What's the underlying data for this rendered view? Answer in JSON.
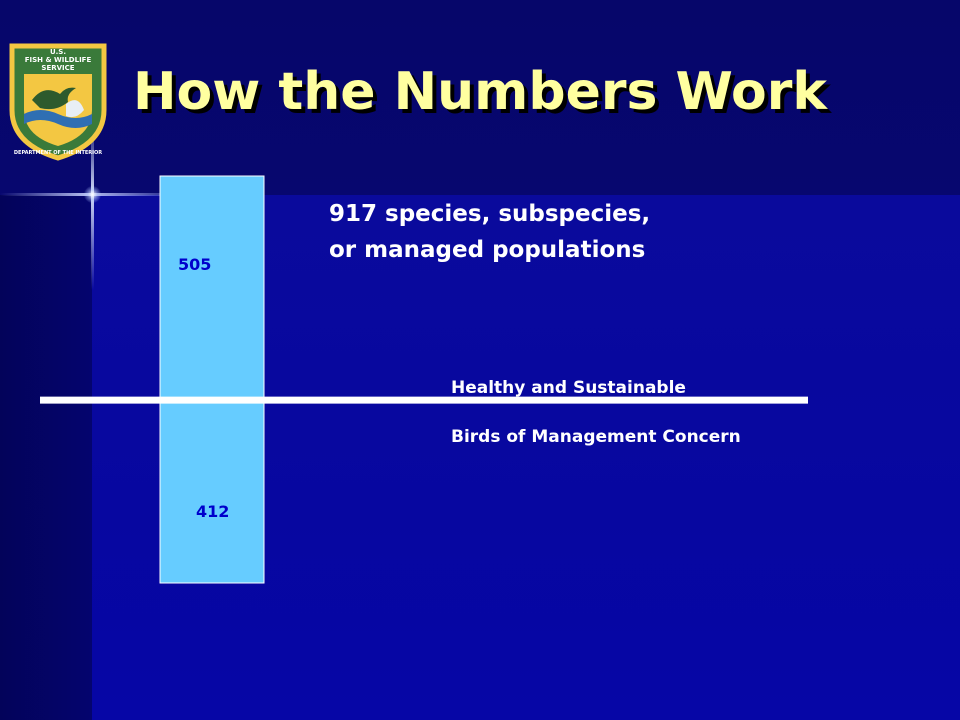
{
  "logo": {
    "text": [
      "U.S.",
      "FISH & WILDLIFE",
      "SERVICE",
      "DEPARTMENT OF THE INTERIOR"
    ],
    "colors": {
      "shield": "#3a7a3a",
      "sky": "#f3c742",
      "water": "#2f6fb3"
    }
  },
  "slide": {
    "title": "How the Numbers Work"
  },
  "chart_data": {
    "type": "bar",
    "orientation": "stacked-vertical",
    "total": 917,
    "total_label": [
      "917 species, subspecies,",
      "or managed populations"
    ],
    "segments": [
      {
        "name": "Healthy and Sustainable",
        "value": 505,
        "label": "505",
        "position": "upper"
      },
      {
        "name": "Birds of Management Concern",
        "value": 412,
        "label": "412",
        "position": "lower"
      }
    ],
    "divider": "horizontal line between segments",
    "colors": {
      "bar": "#66ccff",
      "bar_border": "#ffffff",
      "value_text": "#0000cc",
      "divider": "#ffffff"
    }
  }
}
